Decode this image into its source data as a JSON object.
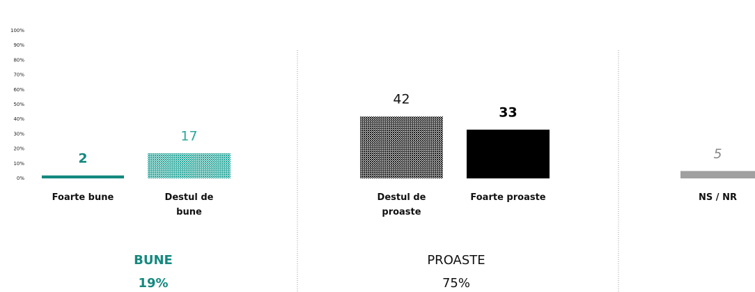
{
  "chart_data": {
    "type": "bar",
    "categories": [
      "Foarte bune",
      "Destul de bune",
      "Destul de proaste",
      "Foarte proaste",
      "NS / NR"
    ],
    "values": [
      2,
      17,
      42,
      33,
      5
    ],
    "colors": [
      "#14897e",
      "#2aa79b",
      "#1e1e1e",
      "#000000",
      "#a0a0a0"
    ],
    "patterned": [
      false,
      true,
      true,
      false,
      false
    ],
    "ylim": [
      0,
      100
    ],
    "yticks": [
      {
        "value": 0,
        "label": "0%"
      },
      {
        "value": 10,
        "label": "10%"
      },
      {
        "value": 20,
        "label": "20%"
      },
      {
        "value": 30,
        "label": "30%"
      },
      {
        "value": 40,
        "label": "40%"
      },
      {
        "value": 50,
        "label": "50%"
      },
      {
        "value": 60,
        "label": "60%"
      },
      {
        "value": 70,
        "label": "70%"
      },
      {
        "value": 80,
        "label": "80%"
      },
      {
        "value": 90,
        "label": "90%"
      },
      {
        "value": 100,
        "label": "100%"
      }
    ],
    "groups": [
      {
        "name": "BUNE",
        "total": "19%"
      },
      {
        "name": "PROASTE",
        "total": "75%"
      }
    ]
  }
}
